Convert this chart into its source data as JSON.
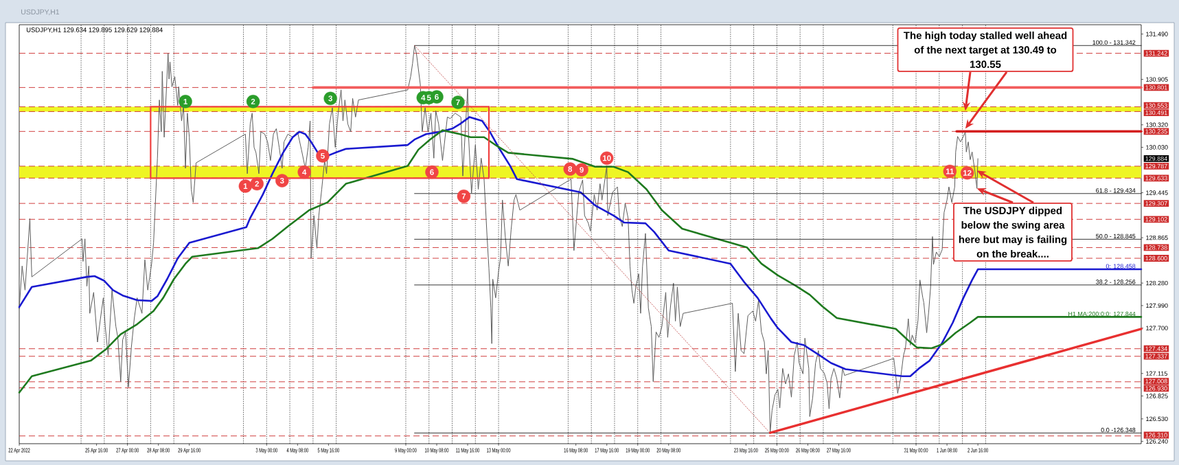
{
  "chart_data": {
    "type": "line",
    "title": "USDJPY,H1",
    "subtitle": "USDJPY,H1 129.634 129.895 129.629 129.884",
    "xlim": [
      "2022-04-22T08:00",
      "2022-06-09T17:00"
    ],
    "ylim": [
      126.21,
      131.61
    ],
    "grid": "x",
    "legend": "right",
    "xticks": [
      {
        "value": "2022-04-22T08:00",
        "label": "22 Apr 2022"
      },
      {
        "value": "2022-04-25T00:00",
        "label": null
      },
      {
        "value": "2022-04-25T16:00",
        "label": "25 Apr 16:00"
      },
      {
        "value": "2022-04-26T00:00",
        "label": null
      },
      {
        "value": "2022-04-27T00:00",
        "label": "27 Apr 00:00"
      },
      {
        "value": "2022-04-27T00:00",
        "label": null
      },
      {
        "value": "2022-04-28T00:00",
        "label": null
      },
      {
        "value": "2022-04-28T08:00",
        "label": "28 Apr 08:00"
      },
      {
        "value": "2022-04-29T00:00",
        "label": null
      },
      {
        "value": "2022-04-29T16:00",
        "label": "29 Apr 16:00"
      },
      {
        "value": "2022-05-02T00:00",
        "label": null
      },
      {
        "value": "2022-05-03T00:00",
        "label": "3 May 00:00"
      },
      {
        "value": "2022-05-03T00:00",
        "label": null
      },
      {
        "value": "2022-05-04T00:00",
        "label": null
      },
      {
        "value": "2022-05-04T08:00",
        "label": "4 May 08:00"
      },
      {
        "value": "2022-05-05T00:00",
        "label": null
      },
      {
        "value": "2022-05-05T16:00",
        "label": "5 May 16:00"
      },
      {
        "value": "2022-05-06T00:00",
        "label": null
      },
      {
        "value": "2022-05-09T00:00",
        "label": "9 May 00:00"
      },
      {
        "value": "2022-05-09T00:00",
        "label": null
      },
      {
        "value": "2022-05-10T00:00",
        "label": null
      },
      {
        "value": "2022-05-10T08:00",
        "label": "10 May 08:00"
      },
      {
        "value": "2022-05-11T00:00",
        "label": null
      },
      {
        "value": "2022-05-11T16:00",
        "label": "11 May 16:00"
      },
      {
        "value": "2022-05-12T00:00",
        "label": null
      },
      {
        "value": "2022-05-13T00:00",
        "label": "13 May 00:00"
      },
      {
        "value": "2022-05-13T00:00",
        "label": null
      },
      {
        "value": "2022-05-16T00:00",
        "label": null
      },
      {
        "value": "2022-05-16T08:00",
        "label": "16 May 08:00"
      },
      {
        "value": "2022-05-17T00:00",
        "label": null
      },
      {
        "value": "2022-05-17T16:00",
        "label": "17 May 16:00"
      },
      {
        "value": "2022-05-18T00:00",
        "label": null
      },
      {
        "value": "2022-05-19T00:00",
        "label": "19 May 00:00"
      },
      {
        "value": "2022-05-19T00:00",
        "label": null
      },
      {
        "value": "2022-05-20T00:00",
        "label": null
      },
      {
        "value": "2022-05-20T08:00",
        "label": "20 May 08:00"
      },
      {
        "value": "2022-05-23T00:00",
        "label": null
      },
      {
        "value": "2022-05-23T16:00",
        "label": "23 May 16:00"
      },
      {
        "value": "2022-05-24T00:00",
        "label": null
      },
      {
        "value": "2022-05-25T00:00",
        "label": "25 May 00:00"
      },
      {
        "value": "2022-05-25T00:00",
        "label": null
      },
      {
        "value": "2022-05-26T00:00",
        "label": null
      },
      {
        "value": "2022-05-26T08:00",
        "label": "26 May 08:00"
      },
      {
        "value": "2022-05-27T00:00",
        "label": null
      },
      {
        "value": "2022-05-27T16:00",
        "label": "27 May 16:00"
      },
      {
        "value": "2022-05-30T00:00",
        "label": null
      },
      {
        "value": "2022-05-31T00:00",
        "label": "31 May 00:00"
      },
      {
        "value": "2022-05-31T00:00",
        "label": null
      },
      {
        "value": "2022-06-01T00:00",
        "label": null
      },
      {
        "value": "2022-06-01T08:00",
        "label": "1 Jun 08:00"
      },
      {
        "value": "2022-06-02T00:00",
        "label": null
      },
      {
        "value": "2022-06-02T16:00",
        "label": "2 Jun 16:00"
      },
      {
        "value": "2022-06-03T00:00",
        "label": null
      }
    ],
    "yticks": [
      {
        "value": 131.49,
        "label": "131.490"
      },
      130.905,
      {
        "value": 130.32,
        "label": "130.320"
      },
      {
        "value": 130.03,
        "label": "130.030"
      },
      129.445,
      128.865,
      {
        "value": 128.28,
        "label": "128.280"
      },
      {
        "value": 127.99,
        "label": "127.990"
      },
      {
        "value": 127.7,
        "label": "127.700"
      },
      127.115,
      126.825,
      {
        "value": 126.53,
        "label": "126.530"
      },
      {
        "value": 126.24,
        "label": "126.240"
      }
    ],
    "bands": [
      {
        "axis": "y",
        "from": 130.491,
        "to": 130.553,
        "color": "#eef524"
      },
      {
        "axis": "y",
        "from": 129.633,
        "to": 129.787,
        "color": "#eef524"
      }
    ],
    "ref_lines": [
      {
        "axis": "y",
        "value": 131.242,
        "label": "131.242",
        "color": "#cc2a2a",
        "line_style": "dashed"
      },
      {
        "axis": "y",
        "value": 130.801,
        "label": "130.801",
        "color": "#cc2a2a",
        "line_style": "dashed"
      },
      {
        "axis": "y",
        "value": 130.553,
        "label": "130.553",
        "color": "#cc2a2a",
        "line_style": "dashed"
      },
      {
        "axis": "y",
        "value": 130.491,
        "label": "130.491",
        "color": "#cc2a2a",
        "line_style": "dashed"
      },
      {
        "axis": "y",
        "value": 130.235,
        "label": "130.235",
        "color": "#cc2a2a",
        "line_style": "dashed"
      },
      {
        "axis": "y",
        "value": 129.787,
        "label": "129.787",
        "color": "#cc2a2a",
        "line_style": "dashed"
      },
      {
        "axis": "y",
        "value": 129.633,
        "label": "129.633",
        "color": "#cc2a2a",
        "line_style": "dashed"
      },
      {
        "axis": "y",
        "value": 129.307,
        "label": "129.307",
        "color": "#cc2a2a",
        "line_style": "dashed"
      },
      {
        "axis": "y",
        "value": 129.102,
        "label": "129.102",
        "color": "#cc2a2a",
        "line_style": "dashed"
      },
      {
        "axis": "y",
        "value": 128.738,
        "label": "128.738",
        "color": "#cc2a2a",
        "line_style": "dashed"
      },
      {
        "axis": "y",
        "value": 128.6,
        "label": "128.600",
        "color": "#cc2a2a",
        "line_style": "dashed"
      },
      {
        "axis": "y",
        "value": 127.434,
        "label": "127.434",
        "color": "#cc2a2a",
        "line_style": "dashed"
      },
      {
        "axis": "y",
        "value": 127.337,
        "label": "127.337",
        "color": "#cc2a2a",
        "line_style": "dashed"
      },
      {
        "axis": "y",
        "value": 127.008,
        "label": "127.008",
        "color": "#cc2a2a",
        "line_style": "dashed"
      },
      {
        "axis": "y",
        "value": 126.93,
        "label": "126.930",
        "color": "#cc2a2a",
        "line_style": "dashed"
      },
      {
        "axis": "y",
        "value": 126.31,
        "label": "126.310",
        "color": "#cc2a2a",
        "line_style": "dashed"
      }
    ],
    "series": [
      {
        "color": "#5c5c5c",
        "x": [
          "2022-04-22T08:00",
          "2022-04-22T11:00",
          "2022-04-22T14:00",
          "2022-04-22T19:00",
          "2022-04-22T21:00",
          "2022-04-25T01:00",
          "2022-04-25T02:00",
          "2022-04-25T04:00",
          "2022-04-25T06:00",
          "2022-04-25T08:00",
          "2022-04-25T09:00",
          "2022-04-25T13:00",
          "2022-04-25T17:00",
          "2022-04-25T20:00",
          "2022-04-25T23:00",
          "2022-04-26T01:00",
          "2022-04-26T04:00",
          "2022-04-26T08:00",
          "2022-04-26T12:00",
          "2022-04-26T14:00",
          "2022-04-26T17:00",
          "2022-04-26T19:00",
          "2022-04-26T22:00",
          "2022-04-27T01:00",
          "2022-04-27T04:00",
          "2022-04-27T07:00",
          "2022-04-27T10:00",
          "2022-04-27T15:00",
          "2022-04-27T18:00",
          "2022-04-27T21:00",
          "2022-04-28T01:00",
          "2022-04-28T03:00",
          "2022-04-28T07:00",
          "2022-04-28T09:00",
          "2022-04-28T11:00",
          "2022-04-28T12:00",
          "2022-04-28T14:00",
          "2022-04-28T18:00",
          "2022-04-28T19:00",
          "2022-04-28T20:00",
          "2022-04-28T22:00",
          "2022-04-29T01:00",
          "2022-04-29T04:00",
          "2022-04-29T05:00",
          "2022-04-29T08:00",
          "2022-04-29T10:00",
          "2022-04-29T12:00",
          "2022-04-29T14:00",
          "2022-04-29T16:00",
          "2022-04-29T18:00",
          "2022-04-29T20:00",
          "2022-04-29T23:00",
          "2022-05-02T02:00",
          "2022-05-02T04:00",
          "2022-05-02T07:00",
          "2022-05-02T09:00",
          "2022-05-02T11:00",
          "2022-05-02T13:00",
          "2022-05-02T16:00",
          "2022-05-02T18:00",
          "2022-05-02T22:00",
          "2022-05-03T01:00",
          "2022-05-03T04:00",
          "2022-05-03T07:00",
          "2022-05-03T10:00",
          "2022-05-03T13:00",
          "2022-05-03T16:00",
          "2022-05-03T18:00",
          "2022-05-03T22:00",
          "2022-05-04T03:00",
          "2022-05-04T08:00",
          "2022-05-04T12:00",
          "2022-05-04T16:00",
          "2022-05-04T19:00",
          "2022-05-04T21:00",
          "2022-05-04T22:00",
          "2022-05-05T01:00",
          "2022-05-05T04:00",
          "2022-05-05T06:00",
          "2022-05-05T09:00",
          "2022-05-05T12:00",
          "2022-05-05T14:00",
          "2022-05-05T17:00",
          "2022-05-05T20:00",
          "2022-05-05T23:00",
          "2022-05-06T02:00",
          "2022-05-06T05:00",
          "2022-05-06T07:00",
          "2022-05-06T09:00",
          "2022-05-06T12:00",
          "2022-05-06T15:00",
          "2022-05-06T17:00",
          "2022-05-06T20:00",
          "2022-05-06T23:00",
          "2022-05-09T02:00",
          "2022-05-09T05:00",
          "2022-05-09T07:00",
          "2022-05-09T09:00",
          "2022-05-09T11:00",
          "2022-05-09T13:00",
          "2022-05-09T15:00",
          "2022-05-09T17:00",
          "2022-05-09T20:00",
          "2022-05-09T23:00",
          "2022-05-10T02:00",
          "2022-05-10T05:00",
          "2022-05-10T07:00",
          "2022-05-10T10:00",
          "2022-05-10T14:00",
          "2022-05-10T19:00",
          "2022-05-10T22:00",
          "2022-05-11T03:00",
          "2022-05-11T09:00",
          "2022-05-11T11:00",
          "2022-05-11T16:00",
          "2022-05-11T17:00",
          "2022-05-11T20:00",
          "2022-05-12T00:00",
          "2022-05-12T03:00",
          "2022-05-12T06:00",
          "2022-05-12T09:00",
          "2022-05-12T12:00",
          "2022-05-12T14:00",
          "2022-05-12T16:00",
          "2022-05-12T17:00",
          "2022-05-12T18:00",
          "2022-05-12T21:00",
          "2022-05-13T00:00",
          "2022-05-13T02:00",
          "2022-05-13T04:00",
          "2022-05-13T07:00",
          "2022-05-13T10:00",
          "2022-05-13T13:00",
          "2022-05-13T16:00",
          "2022-05-13T18:00",
          "2022-05-13T22:00",
          "2022-05-16T03:00",
          "2022-05-16T06:00",
          "2022-05-16T11:00",
          "2022-05-16T15:00",
          "2022-05-16T17:00",
          "2022-05-16T21:00",
          "2022-05-16T23:00",
          "2022-05-17T03:00",
          "2022-05-17T06:00",
          "2022-05-17T09:00",
          "2022-05-17T11:00",
          "2022-05-17T16:00",
          "2022-05-17T17:00",
          "2022-05-17T22:00",
          "2022-05-18T03:00",
          "2022-05-18T05:00",
          "2022-05-18T08:00",
          "2022-05-18T11:00",
          "2022-05-18T14:00",
          "2022-05-18T16:00",
          "2022-05-18T18:00",
          "2022-05-18T20:00",
          "2022-05-18T22:00",
          "2022-05-19T01:00",
          "2022-05-19T03:00",
          "2022-05-19T05:00",
          "2022-05-19T08:00",
          "2022-05-19T09:00",
          "2022-05-19T11:00",
          "2022-05-19T14:00",
          "2022-05-19T16:00",
          "2022-05-19T19:00",
          "2022-05-19T22:00",
          "2022-05-20T01:00",
          "2022-05-20T05:00",
          "2022-05-20T07:00",
          "2022-05-20T10:00",
          "2022-05-20T13:00",
          "2022-05-20T15:00",
          "2022-05-20T17:00",
          "2022-05-20T20:00",
          "2022-05-20T23:00",
          "2022-05-23T02:00",
          "2022-05-23T05:00",
          "2022-05-23T08:00",
          "2022-05-23T11:00",
          "2022-05-23T14:00",
          "2022-05-23T18:00",
          "2022-05-23T23:00",
          "2022-05-24T02:00",
          "2022-05-24T05:00",
          "2022-05-24T08:00",
          "2022-05-24T11:00",
          "2022-05-24T13:00",
          "2022-05-24T15:00",
          "2022-05-24T17:00",
          "2022-05-24T19:00",
          "2022-05-24T22:00",
          "2022-05-25T01:00",
          "2022-05-25T03:00",
          "2022-05-25T06:00",
          "2022-05-25T09:00",
          "2022-05-25T12:00",
          "2022-05-25T15:00",
          "2022-05-25T18:00",
          "2022-05-25T21:00",
          "2022-05-25T23:00",
          "2022-05-26T03:00",
          "2022-05-26T05:00",
          "2022-05-26T09:00",
          "2022-05-26T10:00",
          "2022-05-26T13:00",
          "2022-05-26T16:00",
          "2022-05-26T19:00",
          "2022-05-26T21:00",
          "2022-05-27T01:00",
          "2022-05-27T04:00",
          "2022-05-27T06:00",
          "2022-05-27T08:00",
          "2022-05-27T11:00",
          "2022-05-27T14:00",
          "2022-05-27T17:00",
          "2022-05-27T20:00",
          "2022-05-27T22:00",
          "2022-05-30T01:00",
          "2022-05-30T05:00",
          "2022-05-30T08:00",
          "2022-05-30T11:00",
          "2022-05-30T13:00",
          "2022-05-30T16:00",
          "2022-05-30T18:00",
          "2022-05-30T20:00",
          "2022-05-30T23:00",
          "2022-05-31T02:00",
          "2022-05-31T04:00",
          "2022-05-31T07:00",
          "2022-05-31T08:00",
          "2022-05-31T11:00",
          "2022-05-31T13:00",
          "2022-05-31T15:00",
          "2022-05-31T17:00",
          "2022-05-31T18:00",
          "2022-05-31T21:00",
          "2022-06-01T00:00",
          "2022-06-01T03:00",
          "2022-06-01T05:00",
          "2022-06-01T08:00",
          "2022-06-01T10:00",
          "2022-06-01T13:00",
          "2022-06-01T16:00",
          "2022-06-01T17:00",
          "2022-06-01T19:00",
          "2022-06-01T22:00",
          "2022-06-02T01:00",
          "2022-06-02T03:00",
          "2022-06-02T04:00",
          "2022-06-02T06:00",
          "2022-06-02T08:00",
          "2022-06-02T10:00",
          "2022-06-02T13:00",
          "2022-06-02T15:00",
          "2022-06-02T16:00"
        ],
        "values": [
          127.95,
          128.5,
          128.19,
          129.11,
          128.36,
          128.85,
          128.56,
          128.85,
          128.24,
          128.5,
          127.89,
          128.16,
          127.52,
          127.82,
          128.09,
          127.72,
          127.35,
          128.19,
          127.72,
          127.58,
          127.01,
          127.55,
          127.65,
          126.94,
          127.45,
          127.82,
          128.09,
          127.89,
          128.58,
          128.19,
          128.53,
          128.8,
          129.89,
          130.64,
          130.23,
          131.01,
          130.16,
          131.24,
          130.91,
          131.13,
          130.81,
          130.94,
          130.57,
          130.81,
          130.37,
          130.57,
          129.76,
          130.47,
          130.16,
          129.49,
          129.32,
          129.83,
          130.2,
          129.69,
          130.33,
          130.47,
          130.03,
          129.96,
          129.69,
          130.23,
          130.2,
          130.1,
          129.86,
          130.2,
          130.27,
          130.03,
          129.76,
          130.1,
          130.2,
          130.16,
          130.23,
          130.0,
          129.76,
          130.03,
          130.37,
          128.6,
          129.15,
          128.73,
          129.15,
          129.49,
          129.86,
          129.69,
          130.33,
          130.54,
          130.03,
          130.47,
          130.77,
          130.37,
          130.64,
          130.33,
          130.23,
          130.66,
          130.42,
          130.64,
          130.77,
          130.94,
          131.11,
          131.34,
          131.24,
          131.04,
          130.84,
          130.23,
          130.54,
          130.23,
          130.47,
          129.89,
          130.5,
          130.33,
          129.86,
          130.42,
          130.4,
          130.47,
          130.42,
          129.66,
          130.79,
          130.16,
          129.44,
          130.06,
          129.49,
          129.89,
          129.62,
          128.9,
          128.47,
          127.96,
          127.5,
          128.33,
          128.09,
          128.43,
          128.6,
          129.35,
          128.87,
          128.5,
          128.97,
          129.35,
          129.42,
          129.22,
          129.62,
          128.7,
          129.45,
          129.61,
          129.15,
          129.05,
          128.95,
          129.42,
          129.22,
          129.56,
          129.35,
          129.79,
          129.15,
          129.45,
          129.52,
          129.15,
          129.01,
          129.31,
          129.12,
          128.5,
          128.19,
          128.02,
          128.23,
          128.4,
          127.89,
          128.5,
          128.92,
          128.6,
          127.96,
          127.72,
          127.01,
          127.65,
          127.58,
          127.72,
          128.16,
          127.58,
          127.99,
          128.28,
          127.79,
          128.23,
          127.72,
          127.89,
          128.02,
          127.14,
          127.89,
          127.41,
          127.37,
          127.86,
          127.92,
          127.79,
          128.06,
          127.65,
          127.52,
          127.11,
          127.41,
          126.35,
          126.64,
          126.84,
          126.91,
          126.67,
          127.18,
          126.98,
          127.11,
          126.81,
          127.35,
          127.52,
          127.25,
          127.11,
          127.57,
          127.18,
          126.56,
          126.8,
          127.25,
          127.41,
          127.18,
          127.12,
          126.99,
          126.66,
          127.05,
          127.18,
          127.05,
          126.8,
          127.18,
          127.09,
          127.31,
          126.86,
          127.05,
          127.35,
          127.44,
          127.82,
          127.48,
          127.61,
          127.51,
          127.8,
          128.32,
          128.09,
          128.03,
          127.64,
          127.9,
          128.22,
          128.88,
          128.52,
          128.68,
          128.62,
          128.71,
          129.19,
          129.35,
          129.52,
          129.32,
          129.52,
          129.97,
          130.17,
          130.1,
          130.17,
          130.23,
          129.97,
          130.1,
          129.87,
          129.97,
          129.71,
          129.5,
          129.884
        ]
      },
      {
        "name": "0: 128.458",
        "color": "#1a1ad0",
        "x": [
          "2022-04-22T08:00",
          "2022-04-22T21:00",
          "2022-04-25T06:00",
          "2022-04-25T14:00",
          "2022-04-26T00:00",
          "2022-04-26T09:00",
          "2022-04-26T19:00",
          "2022-04-27T10:00",
          "2022-04-28T01:00",
          "2022-04-28T07:00",
          "2022-04-28T17:00",
          "2022-04-29T04:00",
          "2022-04-29T16:00",
          "2022-05-02T03:00",
          "2022-05-02T07:00",
          "2022-05-02T20:00",
          "2022-05-03T06:00",
          "2022-05-03T17:00",
          "2022-05-04T03:00",
          "2022-05-04T10:00",
          "2022-05-04T16:00",
          "2022-05-04T22:00",
          "2022-05-05T06:00",
          "2022-05-05T15:00",
          "2022-05-06T01:00",
          "2022-05-06T10:00",
          "2022-05-09T02:00",
          "2022-05-09T09:00",
          "2022-05-09T21:00",
          "2022-05-10T12:00",
          "2022-05-11T00:00",
          "2022-05-11T08:00",
          "2022-05-11T18:00",
          "2022-05-12T07:00",
          "2022-05-12T15:00",
          "2022-05-13T00:00",
          "2022-05-13T12:00",
          "2022-05-13T19:00",
          "2022-05-16T13:00",
          "2022-05-17T04:00",
          "2022-05-17T23:00",
          "2022-05-18T10:00",
          "2022-05-19T08:00",
          "2022-05-19T17:00",
          "2022-05-20T08:00",
          "2022-05-23T00:00",
          "2022-05-23T15:00",
          "2022-05-24T04:00",
          "2022-05-24T18:00",
          "2022-05-25T01:00",
          "2022-05-25T15:00",
          "2022-05-26T04:00",
          "2022-05-26T20:00",
          "2022-05-27T08:00",
          "2022-05-27T23:00",
          "2022-05-30T10:00",
          "2022-05-30T18:00",
          "2022-05-31T03:00",
          "2022-05-31T14:00",
          "2022-06-01T03:00",
          "2022-06-01T14:00",
          "2022-06-02T01:00",
          "2022-06-02T10:00",
          "2022-06-02T16:00",
          "2022-06-09T17:00"
        ],
        "values": [
          127.97,
          128.23,
          128.36,
          128.37,
          128.31,
          128.19,
          128.12,
          128.06,
          128.05,
          128.11,
          128.33,
          128.6,
          128.8,
          129.0,
          129.12,
          129.42,
          129.69,
          129.96,
          130.16,
          130.23,
          130.2,
          130.1,
          129.94,
          129.92,
          129.97,
          130.01,
          130.06,
          130.13,
          130.2,
          130.23,
          130.27,
          130.33,
          130.42,
          130.37,
          130.23,
          130.03,
          129.79,
          129.62,
          129.45,
          129.28,
          129.15,
          129.06,
          129.05,
          128.94,
          128.7,
          128.53,
          128.28,
          128.09,
          127.82,
          127.7,
          127.52,
          127.48,
          127.35,
          127.25,
          127.17,
          127.08,
          127.08,
          127.18,
          127.28,
          127.51,
          127.77,
          128.09,
          128.32,
          128.458,
          128.458
        ]
      },
      {
        "name": "H1 MA:200:0:0: 127.844",
        "color": "#1f7a1f",
        "x": [
          "2022-04-22T08:00",
          "2022-04-22T21:00",
          "2022-04-25T10:00",
          "2022-04-26T02:00",
          "2022-04-26T17:00",
          "2022-04-27T10:00",
          "2022-04-28T03:00",
          "2022-04-28T13:00",
          "2022-04-29T00:00",
          "2022-04-29T12:00",
          "2022-04-29T19:00",
          "2022-05-02T15:00",
          "2022-05-03T06:00",
          "2022-05-03T21:00",
          "2022-05-04T20:00",
          "2022-05-05T15:00",
          "2022-05-06T10:00",
          "2022-05-09T02:00",
          "2022-05-09T13:00",
          "2022-05-10T01:00",
          "2022-05-10T14:00",
          "2022-05-11T08:00",
          "2022-05-11T19:00",
          "2022-05-12T09:00",
          "2022-05-12T22:00",
          "2022-05-13T10:00",
          "2022-05-16T05:00",
          "2022-05-17T04:00",
          "2022-05-17T23:00",
          "2022-05-18T14:00",
          "2022-05-19T09:00",
          "2022-05-20T01:00",
          "2022-05-20T22:00",
          "2022-05-23T17:00",
          "2022-05-24T08:00",
          "2022-05-25T01:00",
          "2022-05-25T19:00",
          "2022-05-26T10:00",
          "2022-05-26T23:00",
          "2022-05-27T14:00",
          "2022-05-30T03:00",
          "2022-05-30T16:00",
          "2022-05-31T01:00",
          "2022-05-31T16:00",
          "2022-06-01T03:00",
          "2022-06-01T17:00",
          "2022-06-02T08:00",
          "2022-06-02T16:00",
          "2022-06-09T17:00"
        ],
        "values": [
          126.87,
          127.08,
          127.28,
          127.43,
          127.62,
          127.75,
          127.92,
          128.09,
          128.33,
          128.53,
          128.62,
          128.73,
          128.85,
          129.0,
          129.22,
          129.32,
          129.56,
          129.79,
          130.0,
          130.13,
          130.25,
          130.2,
          130.16,
          130.16,
          130.05,
          129.96,
          129.88,
          129.78,
          129.78,
          129.71,
          129.49,
          129.22,
          128.98,
          128.74,
          128.53,
          128.38,
          128.25,
          128.13,
          127.98,
          127.83,
          127.69,
          127.54,
          127.45,
          127.44,
          127.49,
          127.64,
          127.77,
          127.844,
          127.844
        ]
      },
      {
        "name": "100.0 - 131.342",
        "color": "#000000",
        "x": [
          "2022-05-09T09:00",
          "2022-06-09T17:00"
        ],
        "values": [
          131.342,
          131.342
        ]
      },
      {
        "name": "61.8 - 129.434",
        "color": "#000000",
        "x": [
          "2022-05-09T09:00",
          "2022-06-09T17:00"
        ],
        "values": [
          129.434,
          129.434
        ]
      },
      {
        "name": "50.0 - 128.845",
        "color": "#000000",
        "x": [
          "2022-05-09T09:00",
          "2022-06-09T17:00"
        ],
        "values": [
          128.845,
          128.845
        ]
      },
      {
        "name": "38.2 - 128.256",
        "color": "#000000",
        "x": [
          "2022-05-09T09:00",
          "2022-06-09T17:00"
        ],
        "values": [
          128.256,
          128.256
        ]
      },
      {
        "name": "0.0 -126.348",
        "color": "#000000",
        "x": [
          "2022-05-09T09:00",
          "2022-06-09T17:00"
        ],
        "values": [
          126.348,
          126.348
        ]
      },
      {
        "color": "#c04848",
        "line_style": "dotted",
        "x": [
          "2022-05-09T09:00",
          "2022-05-24T17:00"
        ],
        "values": [
          131.342,
          126.348
        ]
      },
      {
        "color": "#f25c5c",
        "x": [
          "2022-05-05T00:00",
          "2022-06-09T17:00"
        ],
        "values": [
          130.801,
          130.801
        ]
      },
      {
        "color": "#d42020",
        "x": [
          "2022-06-01T18:00",
          "2022-06-09T17:00"
        ],
        "values": [
          130.235,
          130.235
        ]
      },
      {
        "color": "#e83030",
        "x": [
          "2022-05-24T17:00",
          "2022-06-09T17:00"
        ],
        "values": [
          126.35,
          127.69
        ]
      },
      {
        "type": "scatter",
        "color": "#2a9d2a",
        "marker": "circle",
        "x": [
          "2022-04-29T12:00",
          "2022-05-02T10:00",
          "2022-05-05T18:00",
          "2022-05-09T18:00",
          "2022-05-10T00:00",
          "2022-05-10T08:00",
          "2022-05-11T06:00"
        ],
        "values": [
          130.62,
          130.62,
          130.66,
          130.67,
          130.67,
          130.68,
          130.61
        ]
      },
      {
        "type": "scatter",
        "color": "#f04545",
        "marker": "circle",
        "x": [
          "2022-05-02T02:00",
          "2022-05-02T14:00",
          "2022-05-03T16:00",
          "2022-05-04T15:00",
          "2022-05-05T10:00",
          "2022-05-10T03:00",
          "2022-05-11T12:00",
          "2022-05-16T02:00",
          "2022-05-16T14:00",
          "2022-05-17T16:00",
          "2022-06-01T11:00",
          "2022-06-02T05:00"
        ],
        "values": [
          129.53,
          129.56,
          129.6,
          129.71,
          129.92,
          129.71,
          129.4,
          129.75,
          129.74,
          129.89,
          129.72,
          129.7
        ]
      }
    ],
    "annotations": [
      {
        "text": "The high today stalled well ahead of the next target at 130.49 to 130.55",
        "x": "2022-06-02T03:00",
        "y": 130.5
      },
      {
        "text": "The USDJPY dipped below the swing area here but may is failing on the break....",
        "x": "2022-06-02T15:00",
        "y": 129.5
      },
      "129.884",
      {
        "text": "1",
        "x": "2022-04-29T12:00",
        "y": 130.62
      },
      {
        "text": "2",
        "x": "2022-05-02T10:00",
        "y": 130.62
      },
      {
        "text": "3",
        "x": "2022-05-05T18:00",
        "y": 130.66
      },
      {
        "text": "4",
        "x": "2022-05-09T18:00",
        "y": 130.67
      },
      {
        "text": "5",
        "x": "2022-05-10T00:00",
        "y": 130.67
      },
      {
        "text": "6",
        "x": "2022-05-10T08:00",
        "y": 130.68
      },
      {
        "text": "7",
        "x": "2022-05-11T06:00",
        "y": 130.61
      },
      {
        "text": "1",
        "x": "2022-05-02T02:00",
        "y": 129.53
      },
      {
        "text": "2",
        "x": "2022-05-02T14:00",
        "y": 129.56
      },
      {
        "text": "3",
        "x": "2022-05-03T16:00",
        "y": 129.6
      },
      {
        "text": "4",
        "x": "2022-05-04T15:00",
        "y": 129.71
      },
      {
        "text": "5",
        "x": "2022-05-05T10:00",
        "y": 129.92
      },
      {
        "text": "6",
        "x": "2022-05-10T03:00",
        "y": 129.71
      },
      {
        "text": "7",
        "x": "2022-05-11T12:00",
        "y": 129.4
      },
      {
        "text": "8",
        "x": "2022-05-16T02:00",
        "y": 129.75
      },
      {
        "text": "9",
        "x": "2022-05-16T14:00",
        "y": 129.74
      },
      {
        "text": "10",
        "x": "2022-05-17T16:00",
        "y": 129.89
      },
      {
        "text": "11",
        "x": "2022-06-01T11:00",
        "y": 129.72
      },
      {
        "text": "12",
        "x": "2022-06-02T05:00",
        "y": 129.7
      }
    ]
  }
}
